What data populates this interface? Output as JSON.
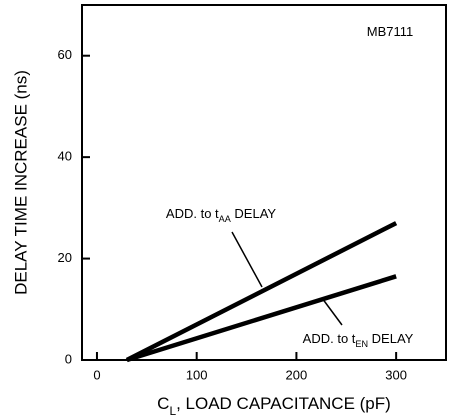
{
  "chart_data": {
    "type": "line",
    "x_label": [
      "C",
      "L",
      ", LOAD CAPACITANCE (pF)"
    ],
    "y_label": "DELAY TIME INCREASE (ns)",
    "xlim": [
      -15,
      350
    ],
    "xticks": [
      0,
      100,
      200,
      300
    ],
    "ylim": [
      0,
      70
    ],
    "yticks": [
      0,
      20,
      40,
      60
    ],
    "series": [
      {
        "color": "#000000",
        "x": [
          30,
          300
        ],
        "values": [
          0,
          27
        ]
      },
      {
        "color": "#000000",
        "x": [
          30,
          300
        ],
        "values": [
          0,
          16.5
        ]
      }
    ],
    "annotations": [
      [
        "MB7111"
      ],
      [
        "ADD. to t",
        "AA",
        " DELAY"
      ],
      [
        "ADD. to t",
        "EN",
        " DELAY"
      ]
    ]
  }
}
